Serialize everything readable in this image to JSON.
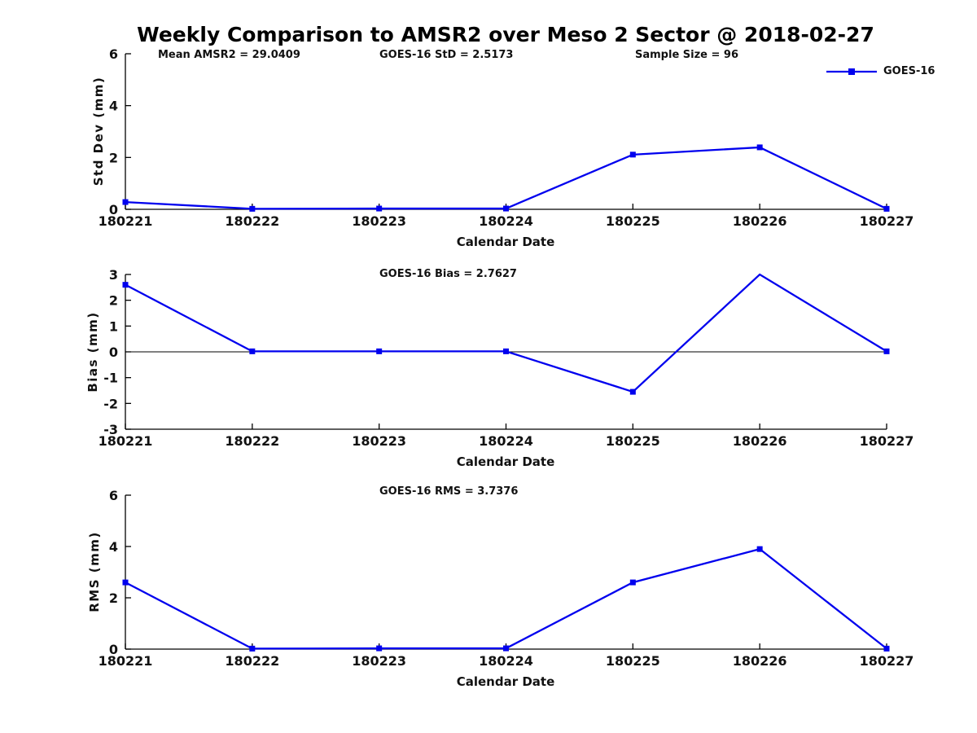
{
  "title": "Weekly Comparison to AMSR2 over Meso 2 Sector @ 2018-02-27",
  "annotations": {
    "mean_amsr2": "Mean AMSR2 = 29.0409",
    "goes_std": "GOES-16 StD = 2.5173",
    "sample_size": "Sample Size = 96"
  },
  "legend": {
    "label": "GOES-16"
  },
  "colors": {
    "series_line": "#0000EE",
    "axis": "#000000",
    "text": "#111111"
  },
  "chart_data": [
    {
      "type": "line",
      "ylabel": "Std Dev (mm)",
      "xlabel": "Calendar Date",
      "categories": [
        "180221",
        "180222",
        "180223",
        "180224",
        "180225",
        "180226",
        "180227"
      ],
      "series": [
        {
          "name": "GOES-16",
          "values": [
            0.28,
            0.02,
            0.03,
            0.03,
            2.11,
            2.39,
            0.02
          ]
        }
      ],
      "ylim": [
        0,
        6
      ],
      "yticks": [
        0,
        2,
        4,
        6
      ],
      "zero_line": false,
      "grid": false,
      "legend_position": "top-right",
      "marker": "square"
    },
    {
      "type": "line",
      "annotation": "GOES-16 Bias  = 2.7627",
      "ylabel": "Bias (mm)",
      "xlabel": "Calendar Date",
      "categories": [
        "180221",
        "180222",
        "180223",
        "180224",
        "180225",
        "180226",
        "180227"
      ],
      "series": [
        {
          "name": "GOES-16",
          "values": [
            2.6,
            0.02,
            0.02,
            0.02,
            -1.55,
            3.0,
            0.02
          ]
        }
      ],
      "ylim": [
        -3,
        3
      ],
      "yticks": [
        -3,
        -2,
        -1,
        0,
        1,
        2,
        3
      ],
      "zero_line": true,
      "grid": false,
      "marker": "square"
    },
    {
      "type": "line",
      "annotation": "GOES-16 RMS = 3.7376",
      "ylabel": "RMS (mm)",
      "xlabel": "Calendar Date",
      "categories": [
        "180221",
        "180222",
        "180223",
        "180224",
        "180225",
        "180226",
        "180227"
      ],
      "series": [
        {
          "name": "GOES-16",
          "values": [
            2.6,
            0.02,
            0.03,
            0.03,
            2.6,
            3.9,
            0.02
          ]
        }
      ],
      "ylim": [
        0,
        6
      ],
      "yticks": [
        0,
        2,
        4,
        6
      ],
      "zero_line": false,
      "grid": false,
      "marker": "square"
    }
  ]
}
